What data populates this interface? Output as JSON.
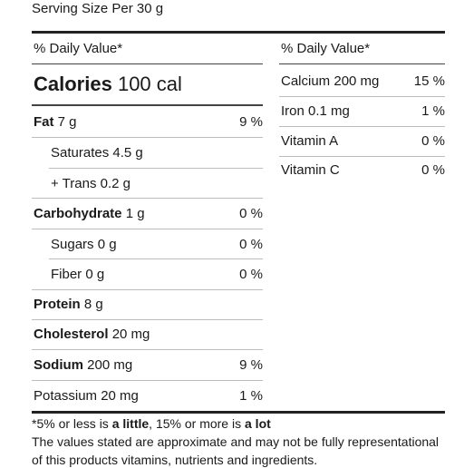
{
  "serving_size": "Serving Size Per 30 g",
  "daily_value_header_left": "% Daily Value*",
  "daily_value_header_right": "% Daily Value*",
  "calories": {
    "label": "Calories",
    "value": "100 cal"
  },
  "left_rows": [
    {
      "name": "Fat",
      "amount": "7 g",
      "pct": "9 %",
      "bold": true
    },
    {
      "name": "Saturates",
      "amount": "4.5 g",
      "pct": "",
      "bold": false
    },
    {
      "name": "+ Trans",
      "amount": "0.2 g",
      "pct": "",
      "bold": false
    },
    {
      "name": "Carbohydrate",
      "amount": "1 g",
      "pct": "0 %",
      "bold": true
    },
    {
      "name": "Sugars",
      "amount": "0 g",
      "pct": "0 %",
      "bold": false
    },
    {
      "name": "Fiber",
      "amount": "0 g",
      "pct": "0 %",
      "bold": false
    },
    {
      "name": "Protein",
      "amount": "8 g",
      "pct": "",
      "bold": true
    },
    {
      "name": "Cholesterol",
      "amount": "20 mg",
      "pct": "",
      "bold": true
    },
    {
      "name": "Sodium",
      "amount": "200 mg",
      "pct": "9 %",
      "bold": true
    },
    {
      "name": "Potassium",
      "amount": "20 mg",
      "pct": "1 %",
      "bold": false
    }
  ],
  "right_rows": [
    {
      "name": "Calcium",
      "amount": "200 mg",
      "pct": "15 %"
    },
    {
      "name": "Iron",
      "amount": "0.1 mg",
      "pct": "1 %"
    },
    {
      "name": "Vitamin A",
      "amount": "",
      "pct": "0 %"
    },
    {
      "name": "Vitamin C",
      "amount": "",
      "pct": "0 %"
    }
  ],
  "footnote": {
    "prefix": "*5% or less is ",
    "little": "a little",
    "middle": ", 15% or more is ",
    "lot": "a lot"
  },
  "disclaimer_line1": "The values stated are approximate and may not be fully representational",
  "disclaimer_line2": "of this products vitamins, nutrients and ingredients."
}
